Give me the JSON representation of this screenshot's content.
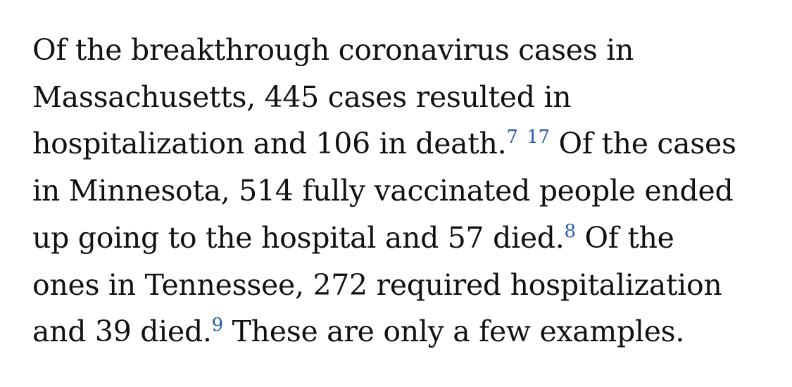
{
  "article": {
    "lines": [
      {
        "segments": [
          {
            "text": "Of the breakthrough coronavirus cases in"
          }
        ]
      },
      {
        "segments": [
          {
            "text": "Massachusetts, 445 cases resulted in"
          }
        ]
      },
      {
        "segments": [
          {
            "text": "hospitalization and 106 in death."
          },
          {
            "text": "7",
            "footnote": true
          },
          {
            "text": " "
          },
          {
            "text": "17",
            "footnote": true
          },
          {
            "text": " Of the cases"
          }
        ]
      },
      {
        "segments": [
          {
            "text": "in Minnesota, 514 fully vaccinated people ended"
          }
        ]
      },
      {
        "segments": [
          {
            "text": "up going to the hospital and 57 died."
          },
          {
            "text": "8",
            "footnote": true
          },
          {
            "text": " Of the"
          }
        ]
      },
      {
        "segments": [
          {
            "text": "ones in Tennessee, 272 required hospitalization"
          }
        ]
      },
      {
        "segments": [
          {
            "text": "and 39 died."
          },
          {
            "text": "9",
            "footnote": true
          },
          {
            "text": " These are only a few examples."
          }
        ]
      }
    ]
  },
  "colors": {
    "text": "#111111",
    "footnote_link": "#2a5aa8",
    "background": "#ffffff"
  }
}
